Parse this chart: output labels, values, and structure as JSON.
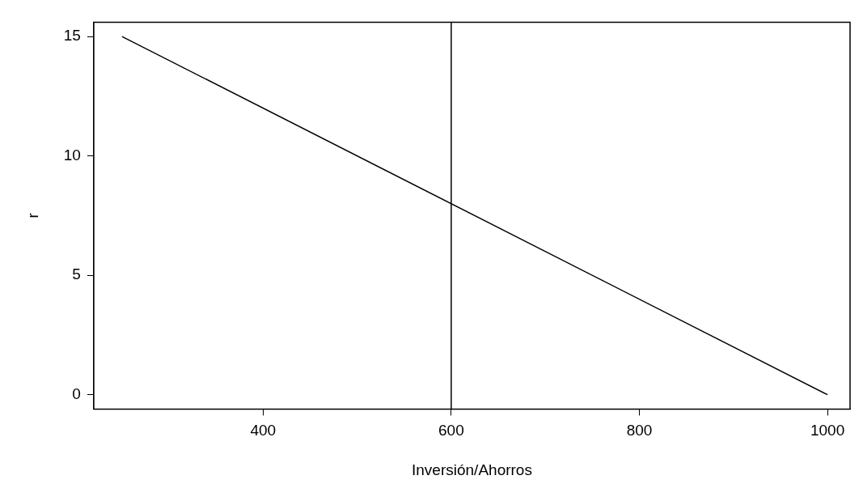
{
  "chart_data": {
    "type": "line",
    "xlabel": "Inversión/Ahorros",
    "ylabel": "r",
    "x": [
      250,
      1000
    ],
    "series": [
      {
        "color": "#000000",
        "values": [
          15,
          0
        ]
      }
    ],
    "xlim": [
      220,
      1024
    ],
    "xticks": [
      400,
      600,
      800,
      1000
    ],
    "ylim": [
      -0.6,
      15.6
    ],
    "yticks": [
      0,
      5,
      10,
      15
    ],
    "ref_lines": [
      {
        "axis": "x",
        "value": 600,
        "color": "#000000"
      }
    ],
    "grid": false,
    "legend": false,
    "marker": "none",
    "line_style": "solid"
  }
}
